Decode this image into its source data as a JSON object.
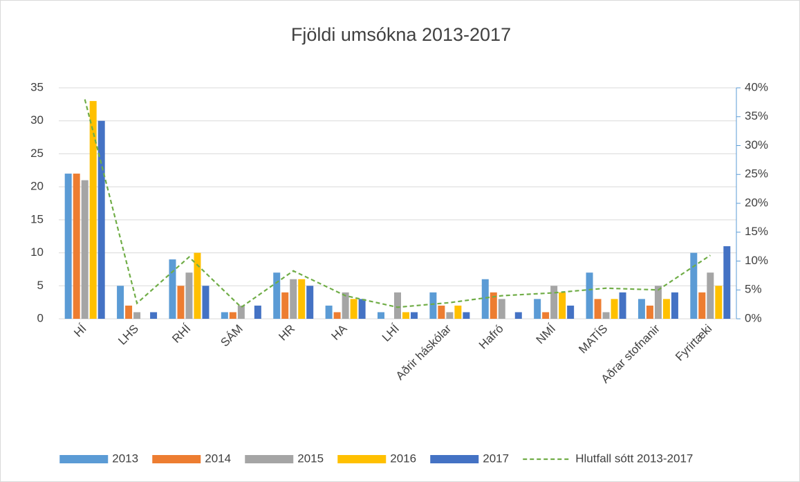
{
  "chart_data": {
    "type": "bar",
    "title": "Fjöldi umsókna 2013-2017",
    "categories": [
      "HÍ",
      "LHS",
      "RHÍ",
      "SÁM",
      "HR",
      "HA",
      "LHÍ",
      "Aðrir háskólar",
      "Hafró",
      "NMÍ",
      "MATÍS",
      "Aðrar stofnanir",
      "Fyrirtæki"
    ],
    "series": [
      {
        "name": "2013",
        "color": "#5b9bd5",
        "values": [
          22,
          5,
          9,
          1,
          7,
          2,
          1,
          4,
          6,
          3,
          7,
          3,
          10
        ]
      },
      {
        "name": "2014",
        "color": "#ed7d31",
        "values": [
          22,
          2,
          5,
          1,
          4,
          1,
          0,
          2,
          4,
          1,
          3,
          2,
          4
        ]
      },
      {
        "name": "2015",
        "color": "#a5a5a5",
        "values": [
          21,
          1,
          7,
          2,
          6,
          4,
          4,
          1,
          3,
          5,
          1,
          5,
          7
        ]
      },
      {
        "name": "2016",
        "color": "#ffc000",
        "values": [
          33,
          0,
          10,
          0,
          6,
          3,
          1,
          2,
          0,
          4,
          3,
          3,
          5
        ]
      },
      {
        "name": "2017",
        "color": "#4472c4",
        "values": [
          30,
          1,
          5,
          2,
          5,
          3,
          1,
          1,
          1,
          2,
          4,
          4,
          11
        ]
      },
      {
        "name": "Hlutfall sótt 2013-2017",
        "color": "#70ad47",
        "type": "line",
        "axis": "y2",
        "dashed": true,
        "values": [
          38,
          2.7,
          10.7,
          2,
          8.3,
          4,
          2,
          2.8,
          4,
          4.5,
          5.3,
          5,
          11
        ]
      }
    ],
    "ylim": [
      0,
      35
    ],
    "yticks": [
      0,
      5,
      10,
      15,
      20,
      25,
      30,
      35
    ],
    "y2lim": [
      0,
      40
    ],
    "y2ticks": [
      {
        "value": 0,
        "label": "0%"
      },
      {
        "value": 5,
        "label": "5%"
      },
      {
        "value": 10,
        "label": "10%"
      },
      {
        "value": 15,
        "label": "15%"
      },
      {
        "value": 20,
        "label": "20%"
      },
      {
        "value": 25,
        "label": "25%"
      },
      {
        "value": 30,
        "label": "30%"
      },
      {
        "value": 35,
        "label": "35%"
      },
      {
        "value": 40,
        "label": "40%"
      }
    ],
    "grid": true,
    "legend": "bottom"
  }
}
